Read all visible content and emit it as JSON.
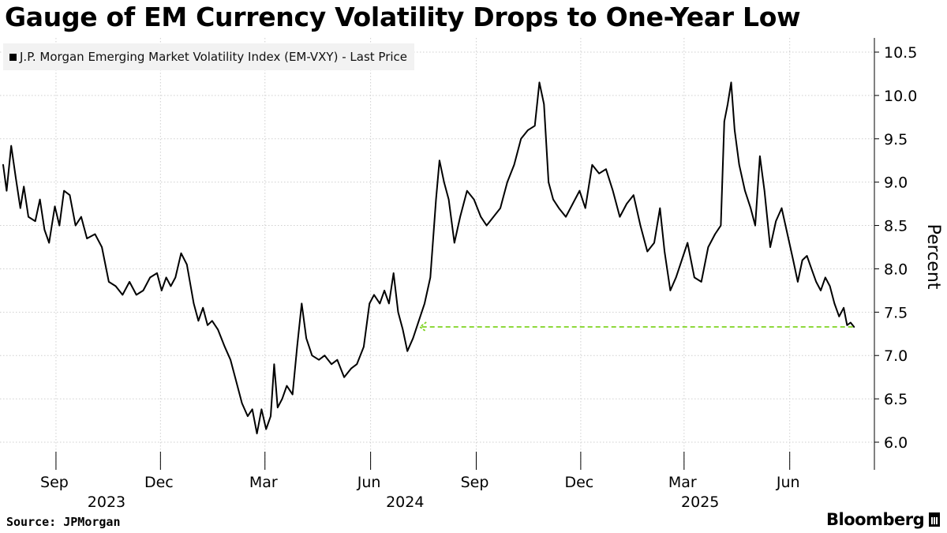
{
  "chart_data": {
    "type": "line",
    "title": "Gauge of EM Currency Volatility Drops to One-Year Low",
    "ylabel": "Percent",
    "ylim": [
      5.7,
      10.6
    ],
    "yticks": [
      6.0,
      6.5,
      7.0,
      7.5,
      8.0,
      8.5,
      9.0,
      9.5,
      10.0,
      10.5
    ],
    "xlim": [
      "2023-07-17",
      "2025-07-31"
    ],
    "x_month_labels": [
      {
        "label": "Sep",
        "date": "2023-09-01"
      },
      {
        "label": "Dec",
        "date": "2023-12-01"
      },
      {
        "label": "Mar",
        "date": "2024-03-01"
      },
      {
        "label": "Jun",
        "date": "2024-06-01"
      },
      {
        "label": "Sep",
        "date": "2024-09-01"
      },
      {
        "label": "Dec",
        "date": "2024-12-01"
      },
      {
        "label": "Mar",
        "date": "2025-03-01"
      },
      {
        "label": "Jun",
        "date": "2025-06-01"
      }
    ],
    "x_year_labels": [
      {
        "label": "2023",
        "date": "2023-10-15"
      },
      {
        "label": "2024",
        "date": "2024-07-01"
      },
      {
        "label": "2025",
        "date": "2025-03-15"
      }
    ],
    "grid": true,
    "legend_position": "top-left",
    "series": [
      {
        "name": "J.P. Morgan Emerging Market Volatility Index (EM-VXY) - Last Price",
        "color": "#000000",
        "points": [
          [
            "2023-07-17",
            9.2
          ],
          [
            "2023-07-20",
            8.9
          ],
          [
            "2023-07-24",
            9.42
          ],
          [
            "2023-07-28",
            9.05
          ],
          [
            "2023-08-01",
            8.7
          ],
          [
            "2023-08-04",
            8.95
          ],
          [
            "2023-08-08",
            8.6
          ],
          [
            "2023-08-14",
            8.55
          ],
          [
            "2023-08-18",
            8.8
          ],
          [
            "2023-08-22",
            8.45
          ],
          [
            "2023-08-26",
            8.3
          ],
          [
            "2023-08-31",
            8.72
          ],
          [
            "2023-09-04",
            8.5
          ],
          [
            "2023-09-08",
            8.9
          ],
          [
            "2023-09-13",
            8.85
          ],
          [
            "2023-09-18",
            8.5
          ],
          [
            "2023-09-23",
            8.6
          ],
          [
            "2023-09-28",
            8.35
          ],
          [
            "2023-10-05",
            8.4
          ],
          [
            "2023-10-11",
            8.25
          ],
          [
            "2023-10-17",
            7.85
          ],
          [
            "2023-10-23",
            7.8
          ],
          [
            "2023-10-29",
            7.7
          ],
          [
            "2023-11-04",
            7.85
          ],
          [
            "2023-11-10",
            7.7
          ],
          [
            "2023-11-16",
            7.75
          ],
          [
            "2023-11-22",
            7.9
          ],
          [
            "2023-11-28",
            7.95
          ],
          [
            "2023-12-02",
            7.75
          ],
          [
            "2023-12-06",
            7.9
          ],
          [
            "2023-12-10",
            7.8
          ],
          [
            "2023-12-14",
            7.9
          ],
          [
            "2023-12-19",
            8.18
          ],
          [
            "2023-12-24",
            8.05
          ],
          [
            "2023-12-30",
            7.6
          ],
          [
            "2024-01-03",
            7.4
          ],
          [
            "2024-01-07",
            7.55
          ],
          [
            "2024-01-11",
            7.35
          ],
          [
            "2024-01-15",
            7.4
          ],
          [
            "2024-01-20",
            7.3
          ],
          [
            "2024-01-26",
            7.1
          ],
          [
            "2024-01-31",
            6.95
          ],
          [
            "2024-02-05",
            6.7
          ],
          [
            "2024-02-10",
            6.45
          ],
          [
            "2024-02-15",
            6.3
          ],
          [
            "2024-02-19",
            6.38
          ],
          [
            "2024-02-23",
            6.1
          ],
          [
            "2024-02-27",
            6.38
          ],
          [
            "2024-03-02",
            6.15
          ],
          [
            "2024-03-06",
            6.3
          ],
          [
            "2024-03-09",
            6.9
          ],
          [
            "2024-03-12",
            6.4
          ],
          [
            "2024-03-16",
            6.5
          ],
          [
            "2024-03-20",
            6.65
          ],
          [
            "2024-03-25",
            6.55
          ],
          [
            "2024-03-29",
            7.1
          ],
          [
            "2024-04-02",
            7.6
          ],
          [
            "2024-04-06",
            7.2
          ],
          [
            "2024-04-11",
            7.0
          ],
          [
            "2024-04-17",
            6.95
          ],
          [
            "2024-04-22",
            7.0
          ],
          [
            "2024-04-28",
            6.9
          ],
          [
            "2024-05-03",
            6.95
          ],
          [
            "2024-05-09",
            6.75
          ],
          [
            "2024-05-15",
            6.85
          ],
          [
            "2024-05-20",
            6.9
          ],
          [
            "2024-05-26",
            7.1
          ],
          [
            "2024-05-31",
            7.6
          ],
          [
            "2024-06-04",
            7.7
          ],
          [
            "2024-06-09",
            7.6
          ],
          [
            "2024-06-13",
            7.75
          ],
          [
            "2024-06-17",
            7.6
          ],
          [
            "2024-06-21",
            7.95
          ],
          [
            "2024-06-25",
            7.5
          ],
          [
            "2024-06-29",
            7.3
          ],
          [
            "2024-07-03",
            7.05
          ],
          [
            "2024-07-08",
            7.2
          ],
          [
            "2024-07-13",
            7.4
          ],
          [
            "2024-07-18",
            7.6
          ],
          [
            "2024-07-23",
            7.9
          ],
          [
            "2024-07-28",
            8.8
          ],
          [
            "2024-07-31",
            9.25
          ],
          [
            "2024-08-04",
            9.0
          ],
          [
            "2024-08-08",
            8.8
          ],
          [
            "2024-08-13",
            8.3
          ],
          [
            "2024-08-18",
            8.6
          ],
          [
            "2024-08-24",
            8.9
          ],
          [
            "2024-08-30",
            8.8
          ],
          [
            "2024-09-05",
            8.6
          ],
          [
            "2024-09-10",
            8.5
          ],
          [
            "2024-09-16",
            8.6
          ],
          [
            "2024-09-22",
            8.7
          ],
          [
            "2024-09-28",
            9.0
          ],
          [
            "2024-10-04",
            9.2
          ],
          [
            "2024-10-10",
            9.5
          ],
          [
            "2024-10-16",
            9.6
          ],
          [
            "2024-10-22",
            9.65
          ],
          [
            "2024-10-26",
            10.15
          ],
          [
            "2024-10-30",
            9.9
          ],
          [
            "2024-11-03",
            9.0
          ],
          [
            "2024-11-07",
            8.8
          ],
          [
            "2024-11-12",
            8.7
          ],
          [
            "2024-11-18",
            8.6
          ],
          [
            "2024-11-24",
            8.75
          ],
          [
            "2024-11-30",
            8.9
          ],
          [
            "2024-12-05",
            8.7
          ],
          [
            "2024-12-11",
            9.2
          ],
          [
            "2024-12-17",
            9.1
          ],
          [
            "2024-12-23",
            9.15
          ],
          [
            "2024-12-29",
            8.9
          ],
          [
            "2025-01-04",
            8.6
          ],
          [
            "2025-01-10",
            8.75
          ],
          [
            "2025-01-16",
            8.85
          ],
          [
            "2025-01-22",
            8.5
          ],
          [
            "2025-01-28",
            8.2
          ],
          [
            "2025-02-03",
            8.3
          ],
          [
            "2025-02-08",
            8.7
          ],
          [
            "2025-02-12",
            8.2
          ],
          [
            "2025-02-17",
            7.75
          ],
          [
            "2025-02-22",
            7.9
          ],
          [
            "2025-02-27",
            8.1
          ],
          [
            "2025-03-04",
            8.3
          ],
          [
            "2025-03-10",
            7.9
          ],
          [
            "2025-03-16",
            7.85
          ],
          [
            "2025-03-22",
            8.25
          ],
          [
            "2025-03-28",
            8.4
          ],
          [
            "2025-04-02",
            8.5
          ],
          [
            "2025-04-05",
            9.7
          ],
          [
            "2025-04-08",
            9.9
          ],
          [
            "2025-04-11",
            10.15
          ],
          [
            "2025-04-14",
            9.6
          ],
          [
            "2025-04-18",
            9.2
          ],
          [
            "2025-04-23",
            8.9
          ],
          [
            "2025-04-28",
            8.7
          ],
          [
            "2025-05-02",
            8.5
          ],
          [
            "2025-05-06",
            9.3
          ],
          [
            "2025-05-10",
            8.9
          ],
          [
            "2025-05-15",
            8.25
          ],
          [
            "2025-05-20",
            8.55
          ],
          [
            "2025-05-25",
            8.7
          ],
          [
            "2025-05-30",
            8.4
          ],
          [
            "2025-06-04",
            8.1
          ],
          [
            "2025-06-08",
            7.85
          ],
          [
            "2025-06-12",
            8.1
          ],
          [
            "2025-06-16",
            8.15
          ],
          [
            "2025-06-20",
            8.0
          ],
          [
            "2025-06-24",
            7.85
          ],
          [
            "2025-06-28",
            7.75
          ],
          [
            "2025-07-02",
            7.9
          ],
          [
            "2025-07-06",
            7.8
          ],
          [
            "2025-07-10",
            7.6
          ],
          [
            "2025-07-14",
            7.45
          ],
          [
            "2025-07-18",
            7.55
          ],
          [
            "2025-07-21",
            7.35
          ],
          [
            "2025-07-24",
            7.38
          ],
          [
            "2025-07-27",
            7.33
          ]
        ]
      }
    ],
    "annotations": [
      {
        "type": "dashed-arrow",
        "color": "#7ed321",
        "y": 7.33,
        "x_from": "2025-07-26",
        "x_to": "2024-07-14"
      }
    ]
  },
  "footer": {
    "source": "Source: JPMorgan",
    "brand": "Bloomberg"
  }
}
